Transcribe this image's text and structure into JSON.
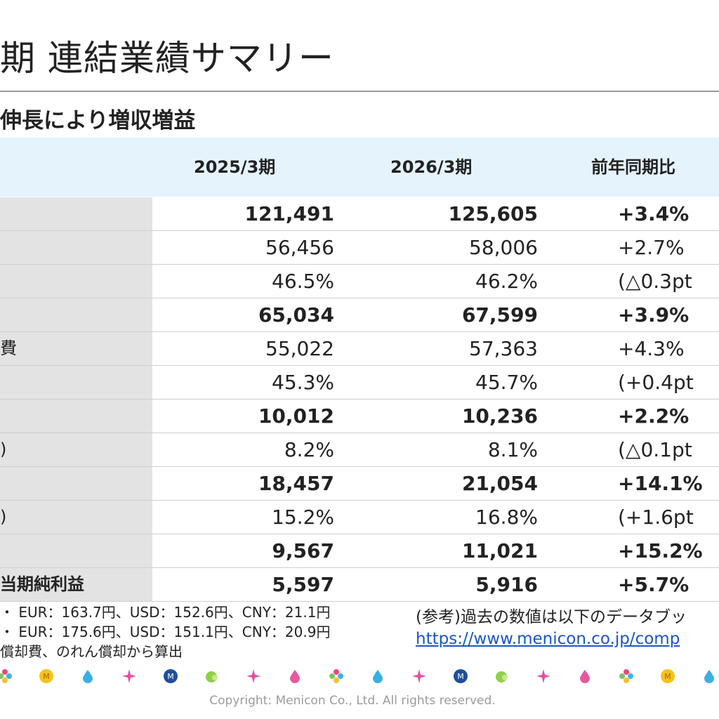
{
  "page": {
    "title": "期 連結業績サマリー",
    "subtitle": "伸長により増収増益"
  },
  "table": {
    "headers": [
      "2025/3期",
      "2026/3期",
      "前年同期比"
    ],
    "rows": [
      {
        "label": "",
        "v2025": "121,491",
        "v2026": "125,605",
        "yoy": "+3.4%",
        "bold": true
      },
      {
        "label": "",
        "v2025": "56,456",
        "v2026": "58,006",
        "yoy": "+2.7%",
        "bold": false
      },
      {
        "label": "",
        "v2025": "46.5%",
        "v2026": "46.2%",
        "yoy": "(△0.3pt",
        "bold": false
      },
      {
        "label": "",
        "v2025": "65,034",
        "v2026": "67,599",
        "yoy": "+3.9%",
        "bold": true
      },
      {
        "label": "費",
        "v2025": "55,022",
        "v2026": "57,363",
        "yoy": "+4.3%",
        "bold": false
      },
      {
        "label": "",
        "v2025": "45.3%",
        "v2026": "45.7%",
        "yoy": "(+0.4pt",
        "bold": false
      },
      {
        "label": "",
        "v2025": "10,012",
        "v2026": "10,236",
        "yoy": "+2.2%",
        "bold": true
      },
      {
        "label": ")",
        "v2025": "8.2%",
        "v2026": "8.1%",
        "yoy": "(△0.1pt",
        "bold": false
      },
      {
        "label": "",
        "v2025": "18,457",
        "v2026": "21,054",
        "yoy": "+14.1%",
        "bold": true
      },
      {
        "label": ")",
        "v2025": "15.2%",
        "v2026": "16.8%",
        "yoy": "(+1.6pt",
        "bold": false
      },
      {
        "label": "",
        "v2025": "9,567",
        "v2026": "11,021",
        "yoy": "+15.2%",
        "bold": true
      },
      {
        "label": "当期純利益",
        "v2025": "5,597",
        "v2026": "5,916",
        "yoy": "+5.7%",
        "bold": true
      }
    ]
  },
  "notes": {
    "line1": "・ EUR：163.7円、USD：152.6円、CNY：21.1円",
    "line2": "・ EUR：175.6円、USD：151.1円、CNY：20.9円",
    "line3": "償却費、のれん償却から算出"
  },
  "reference": {
    "text": "(参考)過去の数値は以下のデータブッ",
    "link": "https://www.menicon.co.jp/comp"
  },
  "footer": {
    "copyright": "Copyright: Menicon Co., Ltd. All rights reserved."
  },
  "decor": {
    "icons": [
      "flower-icon",
      "coin-icon",
      "drop-icon",
      "sparkle-icon",
      "menicon-logo-icon",
      "leaf-icon",
      "sparkle-icon",
      "pink-drop-icon",
      "flower-icon",
      "drop-icon",
      "sparkle-icon",
      "menicon-logo-icon",
      "leaf-icon",
      "sparkle-icon",
      "pink-drop-icon",
      "flower-icon",
      "coin-icon",
      "drop-icon"
    ]
  }
}
